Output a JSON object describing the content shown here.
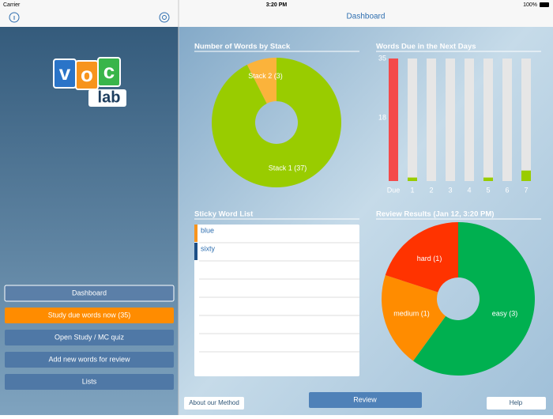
{
  "status_bar": {
    "carrier": "Carrier",
    "time": "3:20 PM",
    "battery": "100%"
  },
  "sidebar": {
    "logo": {
      "letters": [
        "v",
        "o",
        "c"
      ],
      "sub": "lab"
    },
    "buttons": [
      "Dashboard",
      "Study due words now (35)",
      "Open Study / MC quiz",
      "Add new words for review",
      "Lists"
    ]
  },
  "header": {
    "title": "Dashboard"
  },
  "stack_chart": {
    "type": "pie",
    "title": "Number of Words by Stack",
    "labels": [
      "Stack 1 (37)",
      "Stack 2 (3)"
    ],
    "values": [
      37,
      3
    ],
    "colors": [
      "#99cc00",
      "#fbb33b"
    ]
  },
  "due_chart": {
    "type": "bar",
    "title": "Words Due in the Next Days",
    "categories": [
      "Due",
      "1",
      "2",
      "3",
      "4",
      "5",
      "6",
      "7"
    ],
    "values": [
      35,
      1,
      0,
      0,
      0,
      1,
      0,
      3
    ],
    "ylim": [
      0,
      35
    ],
    "yticks": [
      18,
      35
    ],
    "due_color": "#f44a4a",
    "color": "#99cc00"
  },
  "sticky_list": {
    "title": "Sticky Word List",
    "items": [
      "blue",
      "sixty"
    ]
  },
  "review_chart": {
    "type": "pie",
    "title": "Review Results (Jan 12, 3:20 PM)",
    "labels": [
      "easy (3)",
      "medium (1)",
      "hard (1)"
    ],
    "values": [
      3,
      1,
      1
    ],
    "colors": [
      "#00b050",
      "#ff8c00",
      "#ff3300"
    ]
  },
  "footer": {
    "left": "About our Method",
    "center": "Review",
    "right": "Help"
  }
}
